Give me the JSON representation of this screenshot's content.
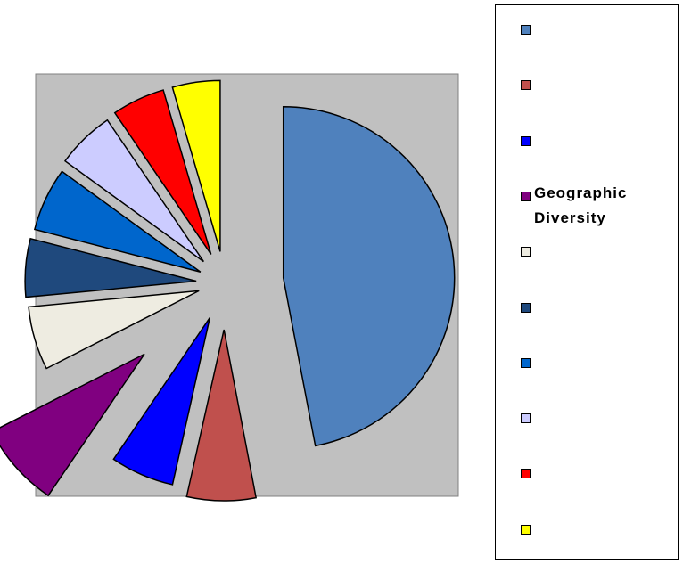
{
  "chart_data": {
    "type": "pie",
    "categories": [
      null,
      null,
      null,
      "Geographic Diversity",
      null,
      null,
      null,
      null,
      null,
      null
    ],
    "values": [
      47,
      6.5,
      6,
      8,
      6,
      5.5,
      6,
      5.5,
      5,
      4.5
    ],
    "colors": [
      "#4f81bd",
      "#c0504d",
      "#0000ff",
      "#800080",
      "#eeece1",
      "#1f497d",
      "#0066cc",
      "#ccccff",
      "#ff0000",
      "#ffff00"
    ],
    "legend": "right"
  }
}
